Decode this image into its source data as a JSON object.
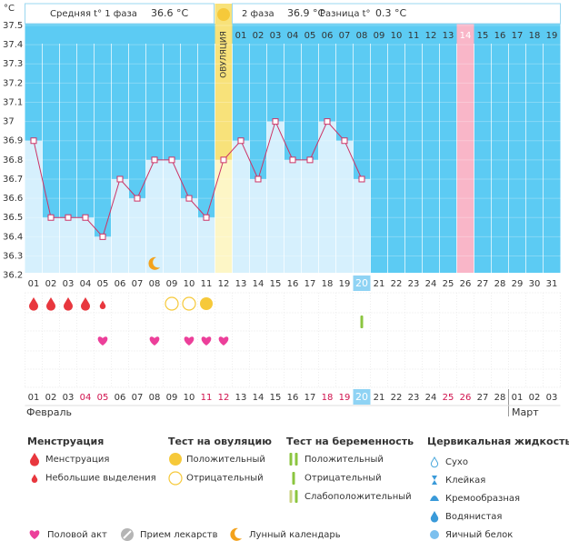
{
  "header": {
    "phase1_label": "Средняя t° 1 фаза",
    "phase1_value": "36.6 °C",
    "phase2_label": "2 фаза",
    "phase2_value": "36.9 °C",
    "diff_label": "Разница t°",
    "diff_value": "0.3 °C",
    "ovulation": "ОВУЛЯЦИЯ"
  },
  "chart_data": {
    "type": "line",
    "y_unit": "°C",
    "categories": [
      "01",
      "02",
      "03",
      "04",
      "05",
      "06",
      "07",
      "08",
      "09",
      "10",
      "11",
      "12",
      "13",
      "14",
      "15",
      "16",
      "17",
      "18",
      "19",
      "20",
      "21",
      "22",
      "23",
      "24",
      "25",
      "26",
      "27",
      "28",
      "29",
      "30",
      "31"
    ],
    "phase2_days": [
      "01",
      "02",
      "03",
      "04",
      "05",
      "06",
      "07",
      "08",
      "09",
      "10",
      "11",
      "12",
      "13",
      "14",
      "15",
      "16",
      "17",
      "18",
      "19"
    ],
    "dates": [
      "01",
      "02",
      "03",
      "04",
      "05",
      "06",
      "07",
      "08",
      "09",
      "10",
      "11",
      "12",
      "13",
      "14",
      "15",
      "16",
      "17",
      "18",
      "19",
      "20",
      "21",
      "22",
      "23",
      "24",
      "25",
      "26",
      "27",
      "28",
      "01",
      "02",
      "03"
    ],
    "months": [
      "Февраль",
      "Март"
    ],
    "series": [
      {
        "color": "#cc3366",
        "values": [
          36.9,
          36.5,
          36.5,
          36.5,
          36.4,
          36.7,
          36.6,
          36.8,
          36.8,
          36.6,
          36.5,
          36.8,
          36.9,
          36.7,
          37.0,
          36.8,
          36.8,
          37.0,
          36.9,
          36.7,
          null,
          null,
          null,
          null,
          null,
          null,
          null,
          null,
          null,
          null,
          null
        ]
      }
    ],
    "ylim": [
      36.2,
      37.5
    ],
    "yticks": [
      36.2,
      36.3,
      36.4,
      36.5,
      36.6,
      36.7,
      36.8,
      36.9,
      37,
      37.1,
      37.2,
      37.3,
      37.4,
      37.5
    ],
    "grid": true
  },
  "legend": {
    "groups": [
      {
        "title": "Менструация",
        "items": [
          "Менструация",
          "Небольшие выделения"
        ]
      },
      {
        "title": "Тест на овуляцию",
        "items": [
          "Положительный",
          "Отрицательный"
        ]
      },
      {
        "title": "Тест на беременность",
        "items": [
          "Положительный",
          "Отрицательный",
          "Слабоположительный"
        ]
      },
      {
        "title": "Цервикальная жидкость",
        "items": [
          "Сухо",
          "Клейкая",
          "Кремообразная",
          "Водянистая",
          "Яичный белок"
        ]
      }
    ],
    "extra": [
      "Половой акт",
      "Прием лекарств",
      "Лунный календарь"
    ]
  }
}
